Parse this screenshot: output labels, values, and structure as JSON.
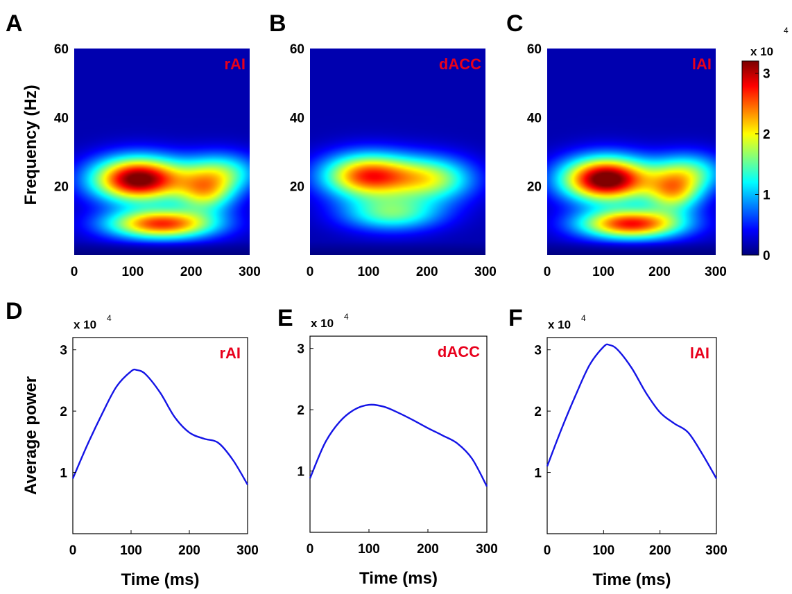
{
  "figure": {
    "panel_labels": [
      "A",
      "B",
      "C",
      "D",
      "E",
      "F"
    ],
    "colorbar": {
      "multiplier": "x 10",
      "exponent": "4",
      "ticks": [
        "0",
        "1",
        "2",
        "3"
      ],
      "colormap": "jet",
      "range": [
        0,
        3.2
      ]
    }
  },
  "chart_data": [
    {
      "panel": "A",
      "type": "heatmap",
      "label": "rAI",
      "xlabel": "",
      "ylabel": "Frequency (Hz)",
      "xlim": [
        0,
        300
      ],
      "ylim": [
        0,
        60
      ],
      "xticks": [
        "0",
        "100",
        "200",
        "300"
      ],
      "yticks": [
        "20",
        "40",
        "60"
      ],
      "zunit_multiplier": 10000,
      "blobs": [
        {
          "t": 110,
          "f": 22,
          "amp": 3.2,
          "st": 55,
          "sf": 4.5
        },
        {
          "t": 225,
          "f": 18,
          "amp": 1.5,
          "st": 35,
          "sf": 4
        },
        {
          "t": 150,
          "f": 9,
          "amp": 2.5,
          "st": 65,
          "sf": 3
        },
        {
          "t": 250,
          "f": 24,
          "amp": 1.3,
          "st": 45,
          "sf": 4
        }
      ],
      "background": 0.15
    },
    {
      "panel": "B",
      "type": "heatmap",
      "label": "dACC",
      "xlabel": "",
      "ylabel": "",
      "xlim": [
        0,
        300
      ],
      "ylim": [
        0,
        60
      ],
      "xticks": [
        "0",
        "100",
        "200",
        "300"
      ],
      "yticks": [
        "20",
        "40",
        "60"
      ],
      "zunit_multiplier": 10000,
      "blobs": [
        {
          "t": 100,
          "f": 23,
          "amp": 2.5,
          "st": 55,
          "sf": 4.5
        },
        {
          "t": 210,
          "f": 22,
          "amp": 1.5,
          "st": 50,
          "sf": 4.5
        },
        {
          "t": 140,
          "f": 12,
          "amp": 1.3,
          "st": 60,
          "sf": 3.5
        }
      ],
      "background": 0.15
    },
    {
      "panel": "C",
      "type": "heatmap",
      "label": "lAI",
      "xlabel": "",
      "ylabel": "",
      "xlim": [
        0,
        300
      ],
      "ylim": [
        0,
        60
      ],
      "xticks": [
        "0",
        "100",
        "200",
        "300"
      ],
      "yticks": [
        "20",
        "40",
        "60"
      ],
      "zunit_multiplier": 10000,
      "blobs": [
        {
          "t": 105,
          "f": 22,
          "amp": 3.3,
          "st": 55,
          "sf": 4.5
        },
        {
          "t": 225,
          "f": 18,
          "amp": 1.6,
          "st": 35,
          "sf": 4
        },
        {
          "t": 150,
          "f": 9,
          "amp": 2.6,
          "st": 65,
          "sf": 3
        },
        {
          "t": 250,
          "f": 24,
          "amp": 1.3,
          "st": 45,
          "sf": 4
        }
      ],
      "background": 0.15
    },
    {
      "panel": "D",
      "type": "line",
      "label": "rAI",
      "xlabel": "Time (ms)",
      "ylabel": "Average power",
      "xlim": [
        0,
        300
      ],
      "ylim": [
        0,
        3.2
      ],
      "xticks": [
        "0",
        "100",
        "200",
        "300"
      ],
      "yticks": [
        "1",
        "2",
        "3"
      ],
      "y_multiplier": "x 10",
      "y_exponent": "4",
      "color": "#1414e6",
      "x": [
        0,
        25,
        50,
        75,
        100,
        110,
        125,
        150,
        175,
        200,
        225,
        250,
        275,
        300
      ],
      "y": [
        0.9,
        1.45,
        1.95,
        2.4,
        2.65,
        2.67,
        2.6,
        2.3,
        1.9,
        1.65,
        1.55,
        1.48,
        1.2,
        0.8
      ]
    },
    {
      "panel": "E",
      "type": "line",
      "label": "dACC",
      "xlabel": "Time (ms)",
      "ylabel": "",
      "xlim": [
        0,
        300
      ],
      "ylim": [
        0,
        3.2
      ],
      "xticks": [
        "0",
        "100",
        "200",
        "300"
      ],
      "yticks": [
        "1",
        "2",
        "3"
      ],
      "y_multiplier": "x 10",
      "y_exponent": "4",
      "color": "#1414e6",
      "x": [
        0,
        25,
        50,
        75,
        100,
        125,
        150,
        175,
        200,
        225,
        250,
        275,
        300
      ],
      "y": [
        0.88,
        1.45,
        1.8,
        2.0,
        2.08,
        2.05,
        1.95,
        1.83,
        1.7,
        1.58,
        1.45,
        1.2,
        0.75
      ]
    },
    {
      "panel": "F",
      "type": "line",
      "label": "lAI",
      "xlabel": "Time (ms)",
      "ylabel": "",
      "xlim": [
        0,
        300
      ],
      "ylim": [
        0,
        3.2
      ],
      "xticks": [
        "0",
        "100",
        "200",
        "300"
      ],
      "yticks": [
        "1",
        "2",
        "3"
      ],
      "y_multiplier": "x 10",
      "y_exponent": "4",
      "color": "#1414e6",
      "x": [
        0,
        25,
        50,
        75,
        100,
        110,
        125,
        150,
        175,
        200,
        225,
        250,
        275,
        300
      ],
      "y": [
        1.1,
        1.7,
        2.25,
        2.75,
        3.05,
        3.08,
        3.0,
        2.7,
        2.3,
        1.98,
        1.8,
        1.65,
        1.3,
        0.9
      ]
    }
  ]
}
